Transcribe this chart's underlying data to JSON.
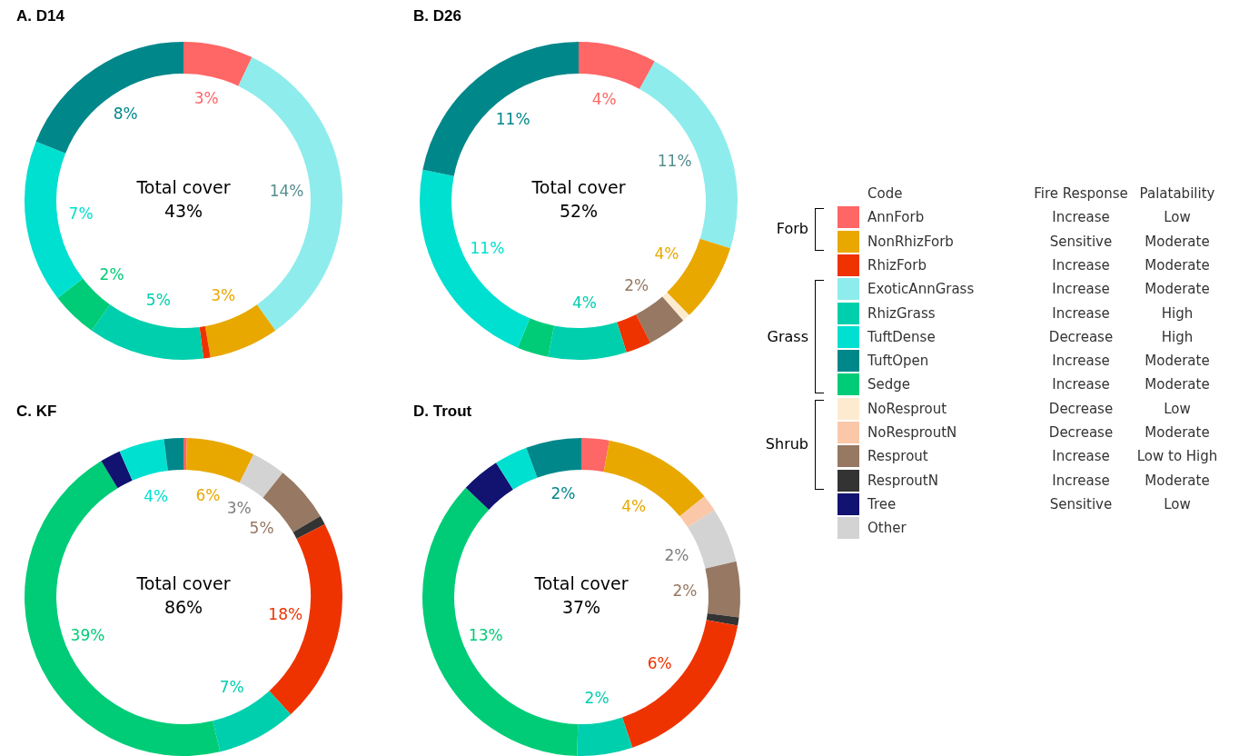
{
  "chart_data": [
    {
      "type": "donut",
      "title": "A. D14",
      "categories": [
        null,
        null,
        null,
        null,
        null,
        null,
        null,
        null
      ],
      "values": [
        3,
        14,
        3,
        0.3,
        5,
        2,
        7,
        8
      ],
      "colors": [
        "#ff6666",
        "#8eecec",
        "#e8a800",
        "#ee3300",
        "#00cfad",
        "#00cc77",
        "#00e0d0",
        "#00878a"
      ],
      "value_labels": [
        "3%",
        "14%",
        "3%",
        null,
        "5%",
        "2%",
        "7%",
        "8%"
      ],
      "annotations": [
        "Total cover",
        "43%"
      ]
    },
    {
      "type": "donut",
      "title": "B. D26",
      "categories": [
        null,
        null,
        null,
        null,
        null,
        null,
        null,
        null,
        null,
        null
      ],
      "values": [
        4,
        11,
        4,
        0.4,
        2,
        1.3,
        4,
        1.6,
        11,
        11
      ],
      "colors": [
        "#ff6666",
        "#8eecec",
        "#e8a800",
        "#fdebd0",
        "#967863",
        "#ee3300",
        "#00cfad",
        "#00cc77",
        "#00e0d0",
        "#00878a"
      ],
      "value_labels": [
        "4%",
        "11%",
        "4%",
        null,
        "2%",
        null,
        "4%",
        null,
        "11%",
        "11%"
      ],
      "annotations": [
        "Total cover",
        "52%"
      ]
    },
    {
      "type": "donut",
      "title": "C. KF",
      "categories": [
        null,
        null,
        null,
        null,
        null,
        null,
        null,
        null,
        null,
        null,
        null
      ],
      "values": [
        0.3,
        6,
        3,
        5,
        0.8,
        18,
        7,
        39,
        1.8,
        4,
        1.7
      ],
      "colors": [
        "#ff6666",
        "#e8a800",
        "#d3d3d3",
        "#967863",
        "#333333",
        "#ee3300",
        "#00cfad",
        "#00cc77",
        "#121270",
        "#00e0d0",
        "#00878a"
      ],
      "value_labels": [
        null,
        "6%",
        "3%",
        "5%",
        null,
        "18%",
        "7%",
        "39%",
        null,
        "4%",
        null
      ],
      "annotations": [
        "Total cover",
        "86%"
      ]
    },
    {
      "type": "donut",
      "title": "D. Trout",
      "categories": [
        null,
        null,
        null,
        null,
        null,
        null,
        null,
        null,
        null,
        null,
        null,
        null
      ],
      "values": [
        1,
        4,
        0.6,
        2,
        2,
        0.3,
        6,
        2,
        13,
        1.4,
        1.2,
        2
      ],
      "colors": [
        "#ff6666",
        "#e8a800",
        "#fac8a8",
        "#d3d3d3",
        "#967863",
        "#333333",
        "#ee3300",
        "#00cfad",
        "#00cc77",
        "#121270",
        "#00e0d0",
        "#00878a"
      ],
      "value_labels": [
        null,
        "4%",
        null,
        "2%",
        "2%",
        null,
        "6%",
        "2%",
        "13%",
        null,
        null,
        "2%"
      ],
      "annotations": [
        "Total cover",
        "37%"
      ]
    },
    {
      "type": "other",
      "categories": [
        "Code",
        "Fire Response",
        "Palatability"
      ],
      "y_categories": [
        "AnnForb",
        "NonRhizForb",
        "RhizForb",
        "ExoticAnnGrass",
        "RhizGrass",
        "TuftDense",
        "TuftOpen",
        "Sedge",
        "NoResprout",
        "NoResproutN",
        "Resprout",
        "ResproutN",
        "Tree",
        "Other"
      ],
      "y2_categories": [
        "Forb",
        null,
        null,
        "Grass",
        null,
        null,
        null,
        null,
        "Shrub",
        null,
        null,
        null,
        null,
        null
      ],
      "cell_labels": [
        [
          "Increase",
          "Low"
        ],
        [
          "Sensitive",
          "Moderate"
        ],
        [
          "Increase",
          "Moderate"
        ],
        [
          "Increase",
          "Moderate"
        ],
        [
          "Increase",
          "High"
        ],
        [
          "Decrease",
          "High"
        ],
        [
          "Increase",
          "Moderate"
        ],
        [
          "Increase",
          "Moderate"
        ],
        [
          "Decrease",
          "Low"
        ],
        [
          "Decrease",
          "Moderate"
        ],
        [
          "Increase",
          "Low to High"
        ],
        [
          "Increase",
          "Moderate"
        ],
        [
          "Sensitive",
          "Low"
        ],
        [
          null,
          null
        ]
      ],
      "colors": [
        "#ff6666",
        "#e8a800",
        "#ee3300",
        "#8eecec",
        "#00cfad",
        "#00e0d0",
        "#00878a",
        "#00cc77",
        "#fdebd0",
        "#fac8a8",
        "#967863",
        "#333333",
        "#121270",
        "#d3d3d3"
      ]
    }
  ]
}
